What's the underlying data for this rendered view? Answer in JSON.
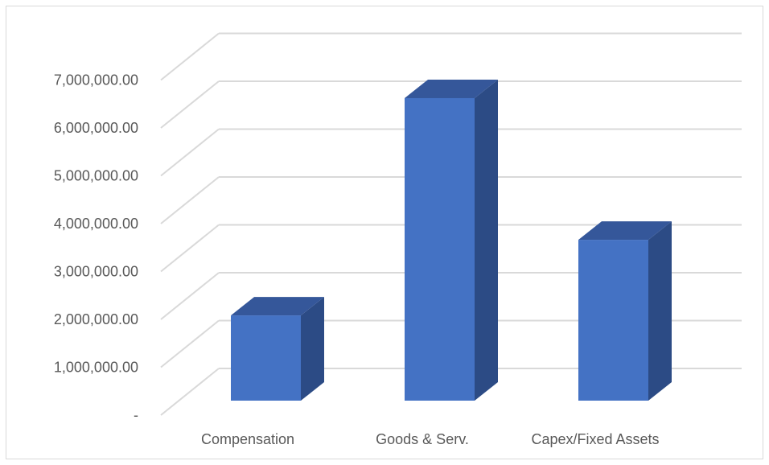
{
  "chart_data": {
    "type": "bar",
    "style": "3d-column",
    "categories": [
      "Compensation",
      "Goods & Serv.",
      "Capex/Fixed Assets"
    ],
    "values": [
      1780000,
      6320000,
      3360000
    ],
    "ylim": [
      0,
      7000000
    ],
    "y_ticks": [
      0,
      1000000,
      2000000,
      3000000,
      4000000,
      5000000,
      6000000,
      7000000
    ],
    "y_tick_labels": [
      "-",
      "1,000,000.00",
      "2,000,000.00",
      "3,000,000.00",
      "4,000,000.00",
      "5,000,000.00",
      "6,000,000.00",
      "7,000,000.00"
    ],
    "grid": true,
    "legend": "none",
    "colors": {
      "bar_front": "#4472c4",
      "bar_side": "#2c4b85",
      "bar_top": "#35579a",
      "grid": "#d9d9d9",
      "text": "#595959"
    }
  }
}
